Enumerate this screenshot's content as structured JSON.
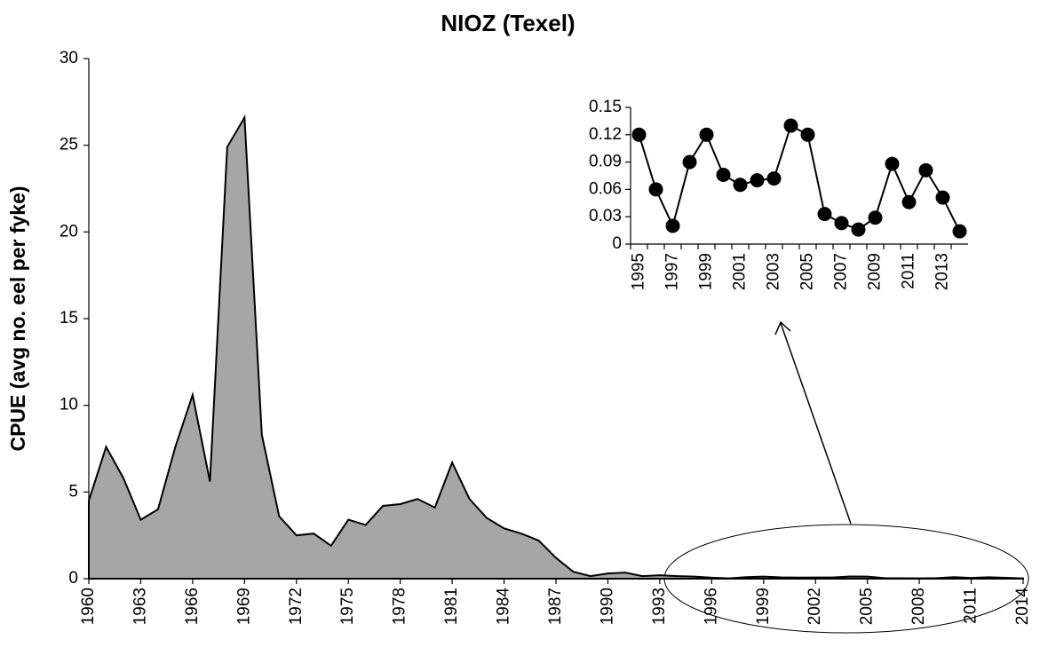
{
  "chart_data": [
    {
      "type": "area",
      "title": "NIOZ (Texel)",
      "y_label": "CPUE (avg no. eel per fyke)",
      "color": "#a6a6a6",
      "x": [
        1960,
        1961,
        1962,
        1963,
        1964,
        1965,
        1966,
        1967,
        1968,
        1969,
        1970,
        1971,
        1972,
        1973,
        1974,
        1975,
        1976,
        1977,
        1978,
        1979,
        1980,
        1981,
        1982,
        1983,
        1984,
        1985,
        1986,
        1987,
        1988,
        1989,
        1990,
        1991,
        1992,
        1993,
        1994,
        1995,
        1996,
        1997,
        1998,
        1999,
        2000,
        2001,
        2002,
        2003,
        2004,
        2005,
        2006,
        2007,
        2008,
        2009,
        2010,
        2011,
        2012,
        2013,
        2014
      ],
      "values": [
        4.5,
        7.6,
        5.8,
        3.4,
        4.0,
        7.6,
        10.6,
        5.6,
        24.9,
        26.6,
        8.3,
        3.6,
        2.5,
        2.6,
        1.9,
        3.4,
        3.1,
        4.2,
        4.3,
        4.6,
        4.1,
        6.7,
        4.6,
        3.5,
        2.9,
        2.6,
        2.2,
        1.2,
        0.4,
        0.15,
        0.3,
        0.35,
        0.15,
        0.2,
        0.15,
        0.12,
        0.06,
        0.02,
        0.09,
        0.12,
        0.076,
        0.065,
        0.07,
        0.072,
        0.13,
        0.12,
        0.033,
        0.023,
        0.016,
        0.029,
        0.088,
        0.046,
        0.081,
        0.051,
        0.014
      ],
      "xlim": [
        1960,
        2014
      ],
      "xticks": [
        1960,
        1963,
        1966,
        1969,
        1972,
        1975,
        1978,
        1981,
        1984,
        1987,
        1990,
        1993,
        1996,
        1999,
        2002,
        2005,
        2008,
        2011,
        2014
      ],
      "ylim": [
        0,
        30
      ],
      "yticks": [
        0,
        5,
        10,
        15,
        20,
        25,
        30
      ]
    },
    {
      "type": "line",
      "color": "#000000",
      "categories": [
        "1995",
        null,
        "1997",
        null,
        "1999",
        null,
        "2001",
        null,
        "2003",
        null,
        "2005",
        null,
        "2007",
        null,
        "2009",
        null,
        "2011",
        null,
        "2013",
        null
      ],
      "values": [
        0.12,
        0.06,
        0.02,
        0.09,
        0.12,
        0.076,
        0.065,
        0.07,
        0.072,
        0.13,
        0.12,
        0.033,
        0.023,
        0.016,
        0.029,
        0.088,
        0.046,
        0.081,
        0.051,
        0.014
      ],
      "ylim": [
        0,
        0.15
      ],
      "yticks": [
        0,
        0.03,
        0.06,
        0.09,
        0.12,
        0.15
      ]
    }
  ]
}
